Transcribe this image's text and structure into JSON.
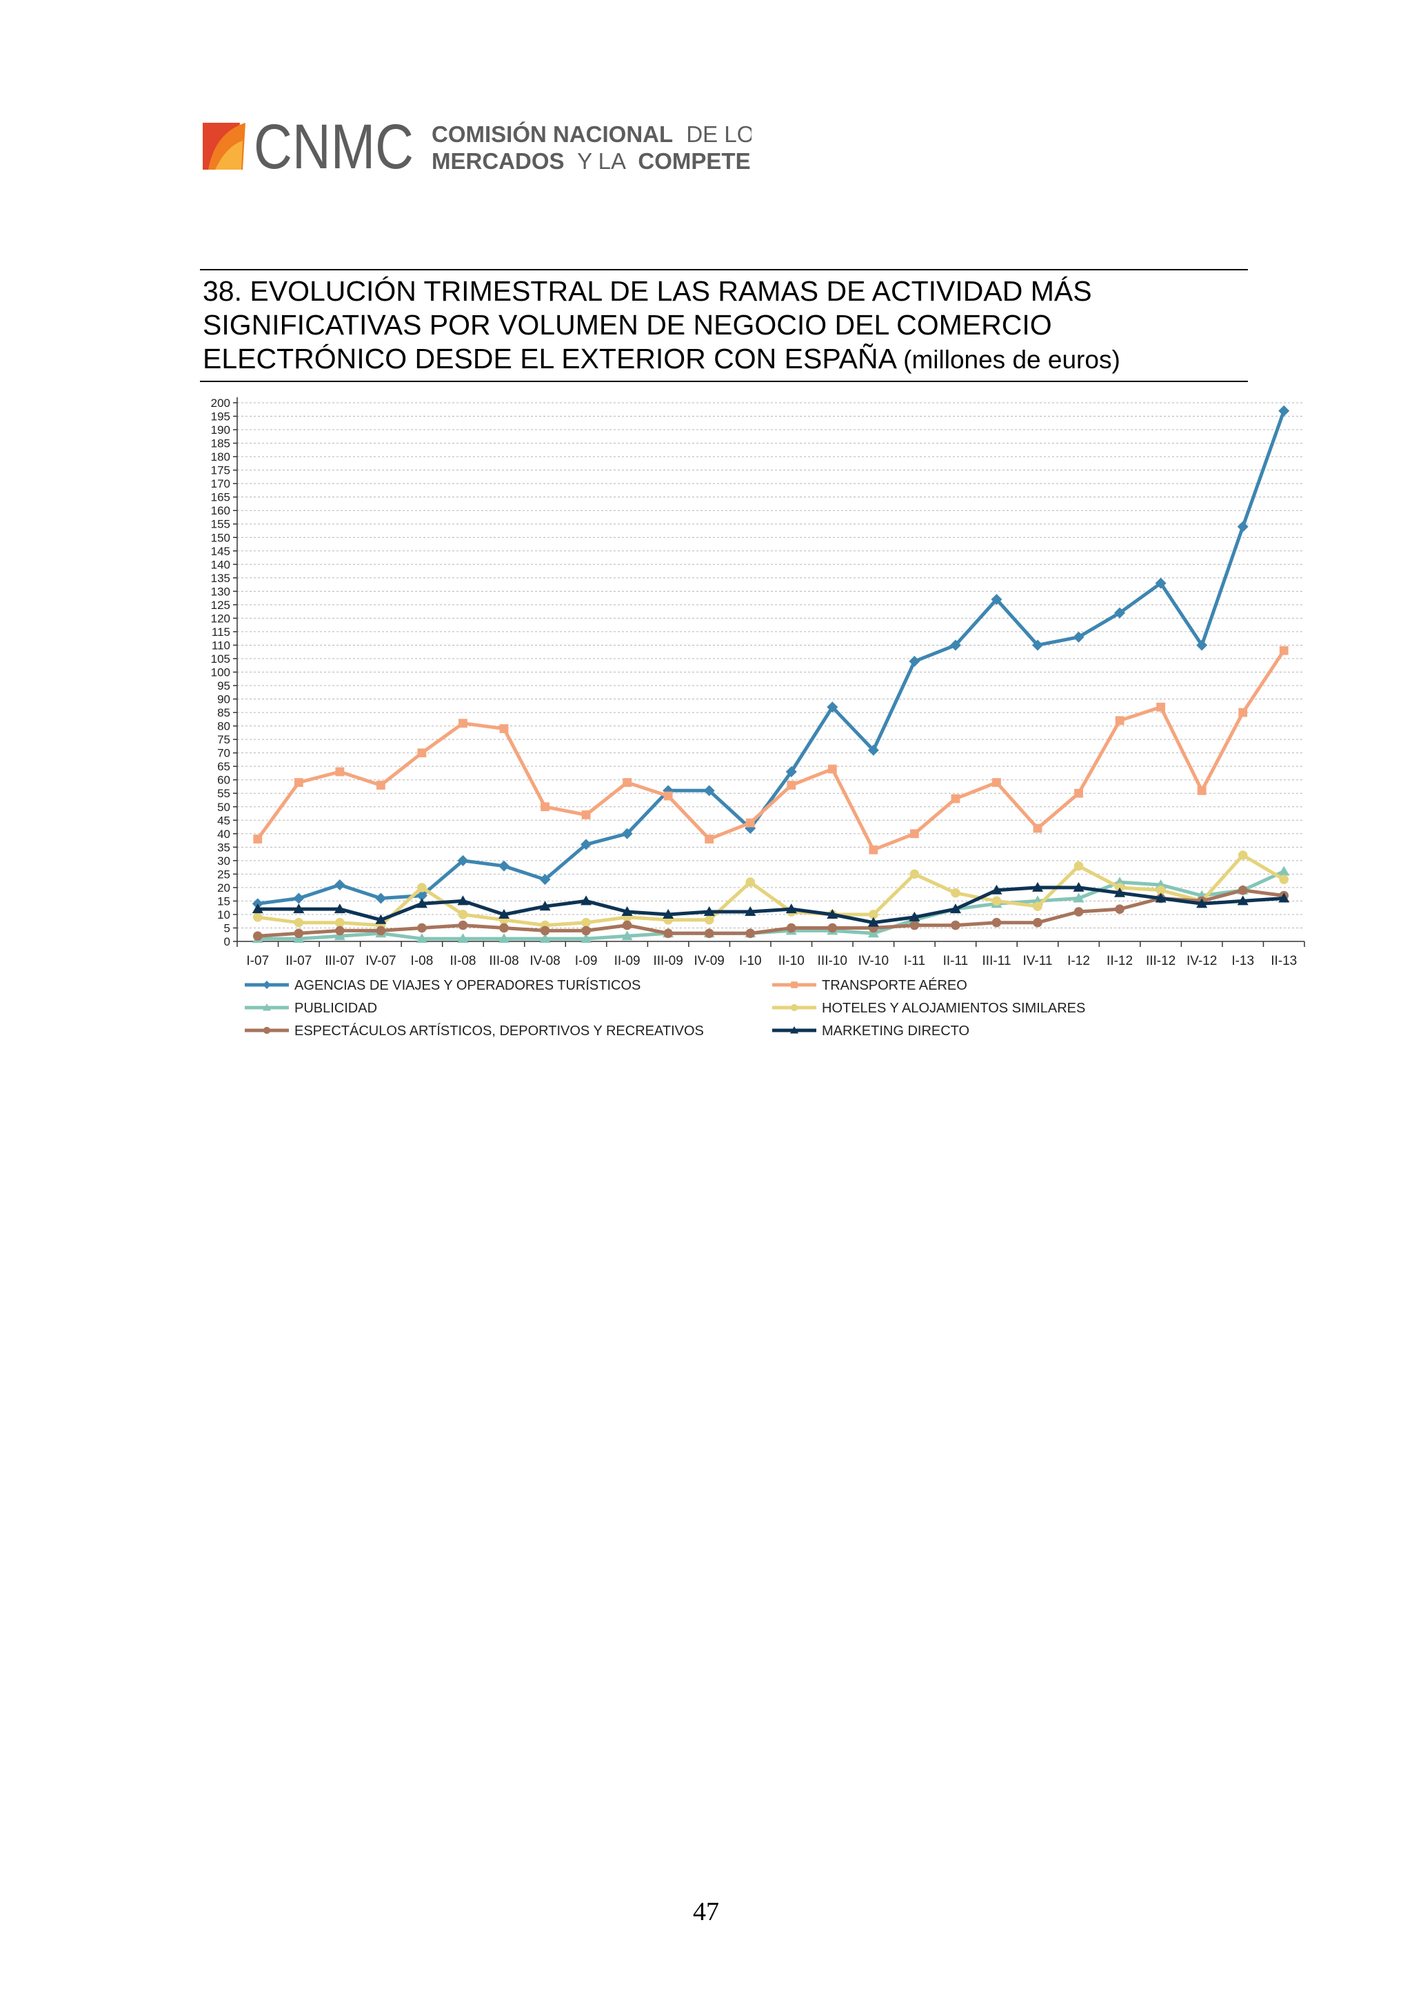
{
  "header": {
    "logo_letters": "CNMC",
    "org_line1_bold": "COMISIÓN NACIONAL",
    "org_line1_light": "DE LOS",
    "org_line2_bold": "MERCADOS",
    "org_line2_light": "Y LA",
    "org_line2_bold2": "COMPETENCIA",
    "colors": {
      "orange": "#f07d1f",
      "red": "#e0442b",
      "yellow": "#f9b13d",
      "gray": "#5d5d5d"
    }
  },
  "title": {
    "line1": "38. EVOLUCIÓN TRIMESTRAL DE LAS RAMAS DE ACTIVIDAD MÁS",
    "line2": "SIGNIFICATIVAS POR VOLUMEN DE NEGOCIO DEL COMERCIO",
    "line3": "ELECTRÓNICO DESDE EL EXTERIOR CON ESPAÑA",
    "unit": "(millones de euros)"
  },
  "chart_data": {
    "type": "line",
    "title": "",
    "xlabel": "",
    "ylabel": "",
    "ylim": [
      0,
      200
    ],
    "ytick_step": 5,
    "grid": true,
    "legend_position": "bottom",
    "categories": [
      "I-07",
      "II-07",
      "III-07",
      "IV-07",
      "I-08",
      "II-08",
      "III-08",
      "IV-08",
      "I-09",
      "II-09",
      "III-09",
      "IV-09",
      "I-10",
      "II-10",
      "III-10",
      "IV-10",
      "I-11",
      "II-11",
      "III-11",
      "IV-11",
      "I-12",
      "II-12",
      "III-12",
      "IV-12",
      "I-13",
      "II-13"
    ],
    "series": [
      {
        "name": "AGENCIAS DE VIAJES Y OPERADORES TURÍSTICOS",
        "color": "#3d86b1",
        "marker": "diamond",
        "values": [
          14,
          16,
          21,
          16,
          17,
          30,
          28,
          23,
          36,
          40,
          56,
          56,
          42,
          63,
          87,
          71,
          104,
          110,
          127,
          110,
          113,
          122,
          133,
          110,
          154,
          197
        ]
      },
      {
        "name": "TRANSPORTE AÉREO",
        "color": "#f5a57d",
        "marker": "square",
        "values": [
          38,
          59,
          63,
          58,
          70,
          81,
          79,
          50,
          47,
          59,
          54,
          38,
          44,
          58,
          64,
          34,
          40,
          53,
          59,
          42,
          55,
          82,
          87,
          56,
          85,
          108
        ]
      },
      {
        "name": "PUBLICIDAD",
        "color": "#84c5b6",
        "marker": "triangle",
        "values": [
          1,
          1,
          2,
          3,
          1,
          1,
          1,
          1,
          1,
          2,
          3,
          3,
          3,
          4,
          4,
          3,
          8,
          12,
          14,
          15,
          16,
          22,
          21,
          17,
          19,
          26
        ]
      },
      {
        "name": "HOTELES  Y ALOJAMIENTOS SIMILARES",
        "color": "#e5d37b",
        "marker": "circle",
        "values": [
          9,
          7,
          7,
          6,
          20,
          10,
          8,
          6,
          7,
          9,
          8,
          8,
          22,
          11,
          10,
          10,
          25,
          18,
          15,
          13,
          28,
          20,
          19,
          15,
          32,
          23
        ]
      },
      {
        "name": "ESPECTÁCULOS ARTÍSTICOS, DEPORTIVOS Y RECREATIVOS",
        "color": "#a7745b",
        "marker": "circle",
        "values": [
          2,
          3,
          4,
          4,
          5,
          6,
          5,
          4,
          4,
          6,
          3,
          3,
          3,
          5,
          5,
          5,
          6,
          6,
          7,
          7,
          11,
          12,
          16,
          15,
          19,
          17
        ]
      },
      {
        "name": "MARKETING DIRECTO",
        "color": "#0d3354",
        "marker": "triangle",
        "values": [
          12,
          12,
          12,
          8,
          14,
          15,
          10,
          13,
          15,
          11,
          10,
          11,
          11,
          12,
          10,
          7,
          9,
          12,
          19,
          20,
          20,
          18,
          16,
          14,
          15,
          16
        ]
      }
    ]
  },
  "footer": {
    "page_number": "47"
  }
}
